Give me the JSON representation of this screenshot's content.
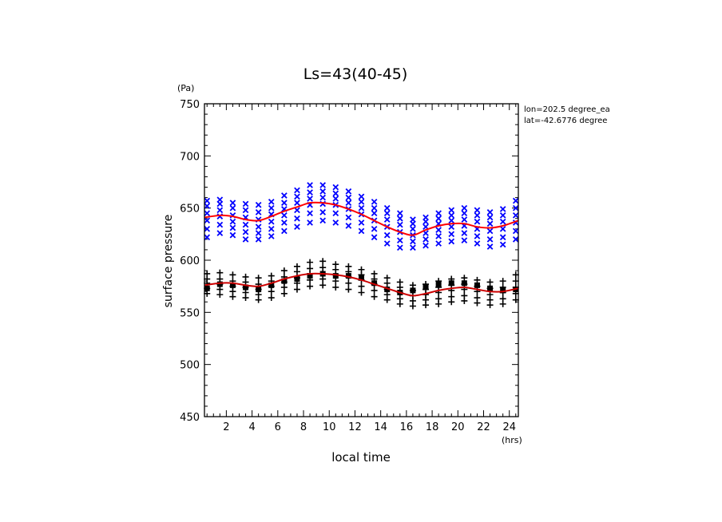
{
  "chart_data": {
    "type": "scatter",
    "title": "Ls=43(40-45)",
    "xlabel": "local time",
    "ylabel": "surface pressure",
    "x_unit": "(hrs)",
    "y_unit": "(Pa)",
    "xlim": [
      0.3,
      24.7
    ],
    "ylim": [
      450,
      750
    ],
    "x_ticks": [
      2,
      4,
      6,
      8,
      10,
      12,
      14,
      16,
      18,
      20,
      22,
      24
    ],
    "y_ticks": [
      450,
      500,
      550,
      600,
      650,
      700,
      750
    ],
    "info_lines": [
      "lon=202.5 degree_ea",
      "lat=-42.6776 degree"
    ],
    "grid": false,
    "marker_x_hours": [
      0.5,
      1.5,
      2.5,
      3.5,
      4.5,
      5.5,
      6.5,
      7.5,
      8.5,
      9.5,
      10.5,
      11.5,
      12.5,
      13.5,
      14.5,
      15.5,
      16.5,
      17.5,
      18.5,
      19.5,
      20.5,
      21.5,
      22.5,
      23.5,
      24.5
    ],
    "curve_x_hours": [
      0.3,
      1.5,
      2.5,
      3.5,
      4.5,
      5.5,
      6.5,
      7.5,
      8.5,
      9.5,
      10.5,
      11.5,
      12.5,
      13.5,
      14.5,
      15.5,
      16.5,
      17.5,
      18.5,
      19.5,
      20.5,
      21.5,
      22.5,
      23.5,
      24.7
    ],
    "series": [
      {
        "marker": "x",
        "color": "#0000ff",
        "values": [
          [
            622,
            630,
            638,
            645,
            652,
            657
          ],
          [
            626,
            634,
            642,
            648,
            654,
            658
          ],
          [
            624,
            631,
            637,
            643,
            650,
            655
          ],
          [
            620,
            627,
            634,
            641,
            648,
            654
          ],
          [
            620,
            626,
            632,
            639,
            646,
            653
          ],
          [
            623,
            630,
            637,
            644,
            650,
            656
          ],
          [
            628,
            636,
            643,
            649,
            655,
            662
          ],
          [
            632,
            640,
            648,
            655,
            661,
            667
          ],
          [
            636,
            645,
            653,
            659,
            665,
            672
          ],
          [
            638,
            646,
            654,
            660,
            666,
            672
          ],
          [
            636,
            645,
            653,
            659,
            664,
            670
          ],
          [
            633,
            641,
            649,
            655,
            660,
            666
          ],
          [
            628,
            636,
            644,
            650,
            656,
            661
          ],
          [
            622,
            630,
            638,
            645,
            650,
            656
          ],
          [
            616,
            624,
            632,
            639,
            645,
            650
          ],
          [
            612,
            619,
            627,
            634,
            640,
            645
          ],
          [
            612,
            618,
            624,
            630,
            635,
            639
          ],
          [
            614,
            620,
            626,
            632,
            637,
            641
          ],
          [
            616,
            623,
            629,
            635,
            640,
            645
          ],
          [
            618,
            625,
            632,
            638,
            643,
            648
          ],
          [
            619,
            626,
            633,
            639,
            645,
            650
          ],
          [
            616,
            623,
            630,
            637,
            643,
            648
          ],
          [
            613,
            620,
            628,
            635,
            641,
            646
          ],
          [
            615,
            622,
            630,
            637,
            643,
            649
          ],
          [
            620,
            628,
            636,
            643,
            650,
            657
          ]
        ]
      },
      {
        "marker": "+",
        "color": "#000000",
        "values": [
          [
            568,
            573,
            578,
            582,
            587
          ],
          [
            567,
            572,
            577,
            582,
            588
          ],
          [
            565,
            570,
            575,
            580,
            586
          ],
          [
            564,
            569,
            574,
            579,
            584
          ],
          [
            562,
            567,
            572,
            577,
            583
          ],
          [
            564,
            570,
            575,
            580,
            585
          ],
          [
            568,
            574,
            579,
            584,
            590
          ],
          [
            572,
            578,
            583,
            589,
            594
          ],
          [
            575,
            581,
            587,
            592,
            598
          ],
          [
            576,
            582,
            587,
            593,
            599
          ],
          [
            574,
            580,
            586,
            591,
            596
          ],
          [
            572,
            578,
            584,
            589,
            594
          ],
          [
            569,
            575,
            581,
            586,
            591
          ],
          [
            565,
            571,
            577,
            582,
            587
          ],
          [
            562,
            567,
            572,
            578,
            583
          ],
          [
            558,
            563,
            569,
            574,
            579
          ],
          [
            556,
            561,
            566,
            571,
            576
          ],
          [
            557,
            562,
            567,
            572,
            577
          ],
          [
            558,
            563,
            569,
            574,
            580
          ],
          [
            560,
            565,
            571,
            576,
            582
          ],
          [
            561,
            566,
            572,
            577,
            583
          ],
          [
            559,
            564,
            570,
            575,
            581
          ],
          [
            557,
            562,
            567,
            573,
            579
          ],
          [
            558,
            563,
            569,
            574,
            580
          ],
          [
            562,
            568,
            574,
            580,
            586
          ]
        ],
        "squares": [
          573,
          577,
          576,
          574,
          572,
          576,
          580,
          582,
          585,
          587,
          585,
          585,
          583,
          578,
          572,
          569,
          571,
          574,
          577,
          578,
          578,
          576,
          573,
          571,
          572
        ]
      },
      {
        "marker": "line",
        "color": "#ff0000",
        "values": [
          641,
          643,
          642,
          639,
          638,
          642,
          647,
          651,
          655,
          655,
          653,
          649,
          644,
          638,
          632,
          627,
          624,
          629,
          633,
          635,
          635,
          632,
          631,
          633,
          638
        ]
      },
      {
        "marker": "line",
        "color": "#cc0000",
        "values": [
          576,
          578,
          578,
          576,
          575,
          578,
          582,
          585,
          587,
          587,
          586,
          584,
          581,
          577,
          573,
          569,
          566,
          568,
          571,
          573,
          574,
          572,
          570,
          570,
          573
        ]
      }
    ]
  }
}
